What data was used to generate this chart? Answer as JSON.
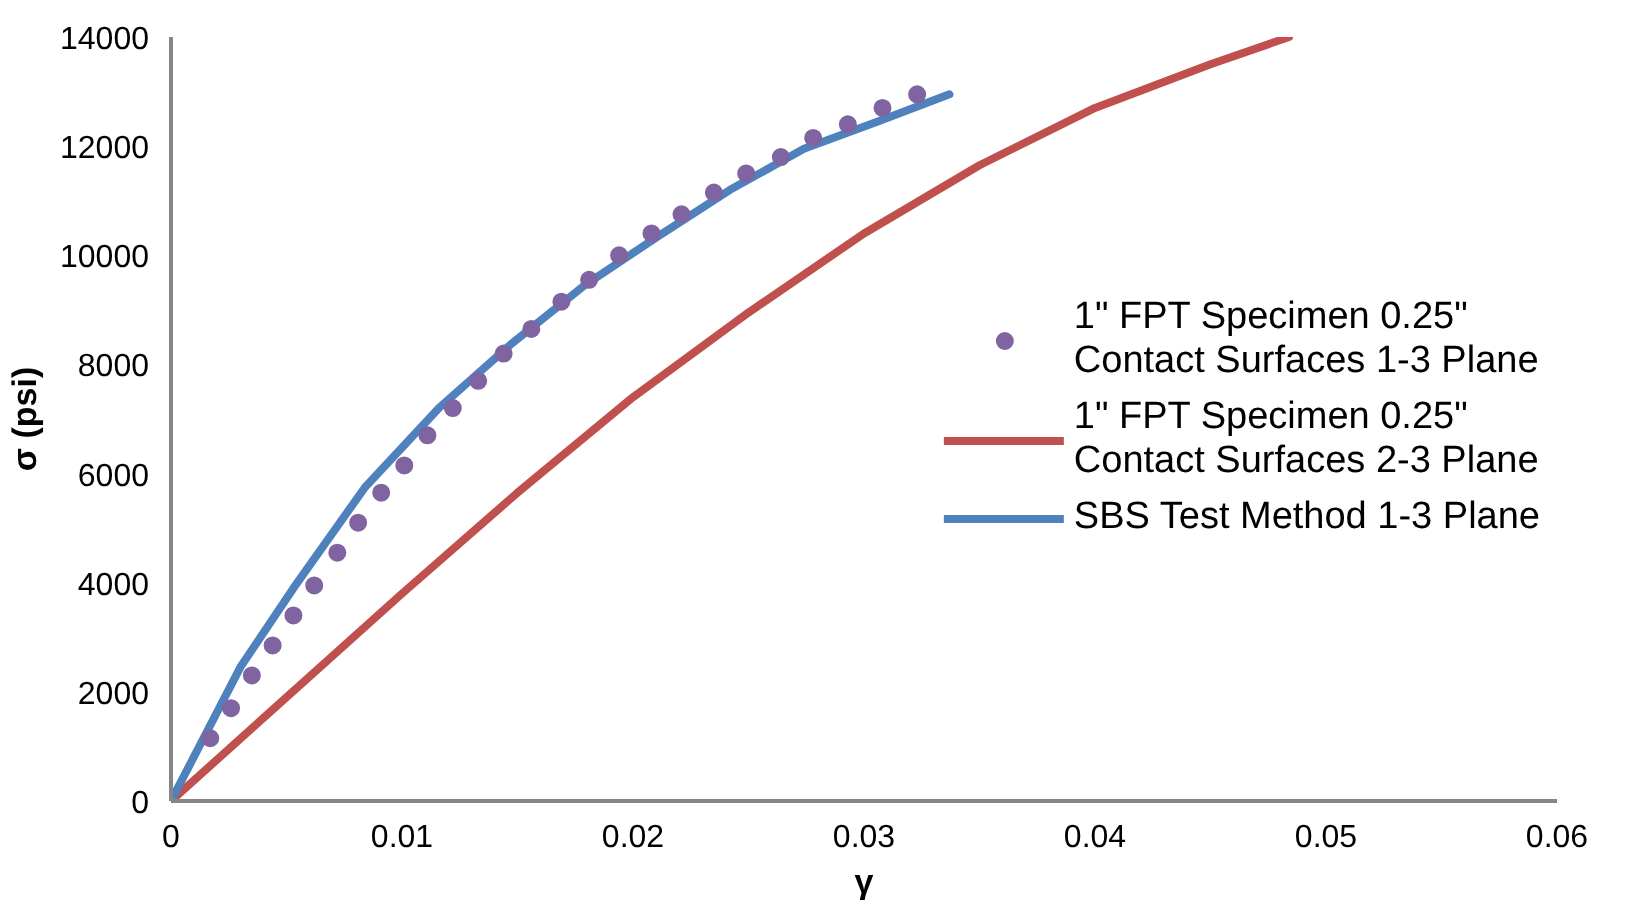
{
  "chart_data": {
    "type": "line",
    "xlabel": "γ",
    "ylabel": "σ (psi)",
    "xlim": [
      0,
      0.06
    ],
    "ylim": [
      0,
      14000
    ],
    "xticks": [
      0,
      0.01,
      0.02,
      0.03,
      0.04,
      0.05,
      0.06
    ],
    "yticks": [
      0,
      2000,
      4000,
      6000,
      8000,
      10000,
      12000,
      14000
    ],
    "grid": false,
    "legend": "right",
    "series": [
      {
        "name": "1\" FPT Specimen 0.25\"\nContact Surfaces 1-3 Plane",
        "type": "scatter",
        "marker": "circle",
        "color": "#8064a2",
        "x": [
          0.0017,
          0.0026,
          0.0035,
          0.0044,
          0.0053,
          0.0062,
          0.0072,
          0.0081,
          0.0091,
          0.0101,
          0.0111,
          0.0122,
          0.0133,
          0.0144,
          0.0156,
          0.0169,
          0.0181,
          0.0194,
          0.0208,
          0.0221,
          0.0235,
          0.0249,
          0.0264,
          0.0278,
          0.0293,
          0.0308,
          0.0323
        ],
        "values": [
          1150,
          1700,
          2300,
          2850,
          3400,
          3950,
          4550,
          5100,
          5650,
          6150,
          6700,
          7200,
          7700,
          8200,
          8650,
          9150,
          9550,
          10000,
          10400,
          10750,
          11150,
          11500,
          11800,
          12150,
          12400,
          12700,
          12950
        ]
      },
      {
        "name": "1\" FPT Specimen 0.25\"\nContact Surfaces 2-3 Plane",
        "color": "#c0504d",
        "x": [
          0,
          0.005,
          0.01,
          0.015,
          0.02,
          0.025,
          0.03,
          0.035,
          0.04,
          0.045,
          0.0484
        ],
        "values": [
          0,
          1900,
          3800,
          5650,
          7400,
          8950,
          10400,
          11650,
          12700,
          13500,
          14000
        ]
      },
      {
        "name": "SBS Test Method 1-3 Plane",
        "color": "#4f81bd",
        "x": [
          0,
          0.003,
          0.0053,
          0.0084,
          0.0116,
          0.0148,
          0.0179,
          0.0211,
          0.0242,
          0.0274,
          0.0306,
          0.0337
        ],
        "values": [
          0,
          2450,
          3900,
          5750,
          7200,
          8400,
          9450,
          10350,
          11200,
          11950,
          12450,
          12950
        ]
      }
    ]
  }
}
